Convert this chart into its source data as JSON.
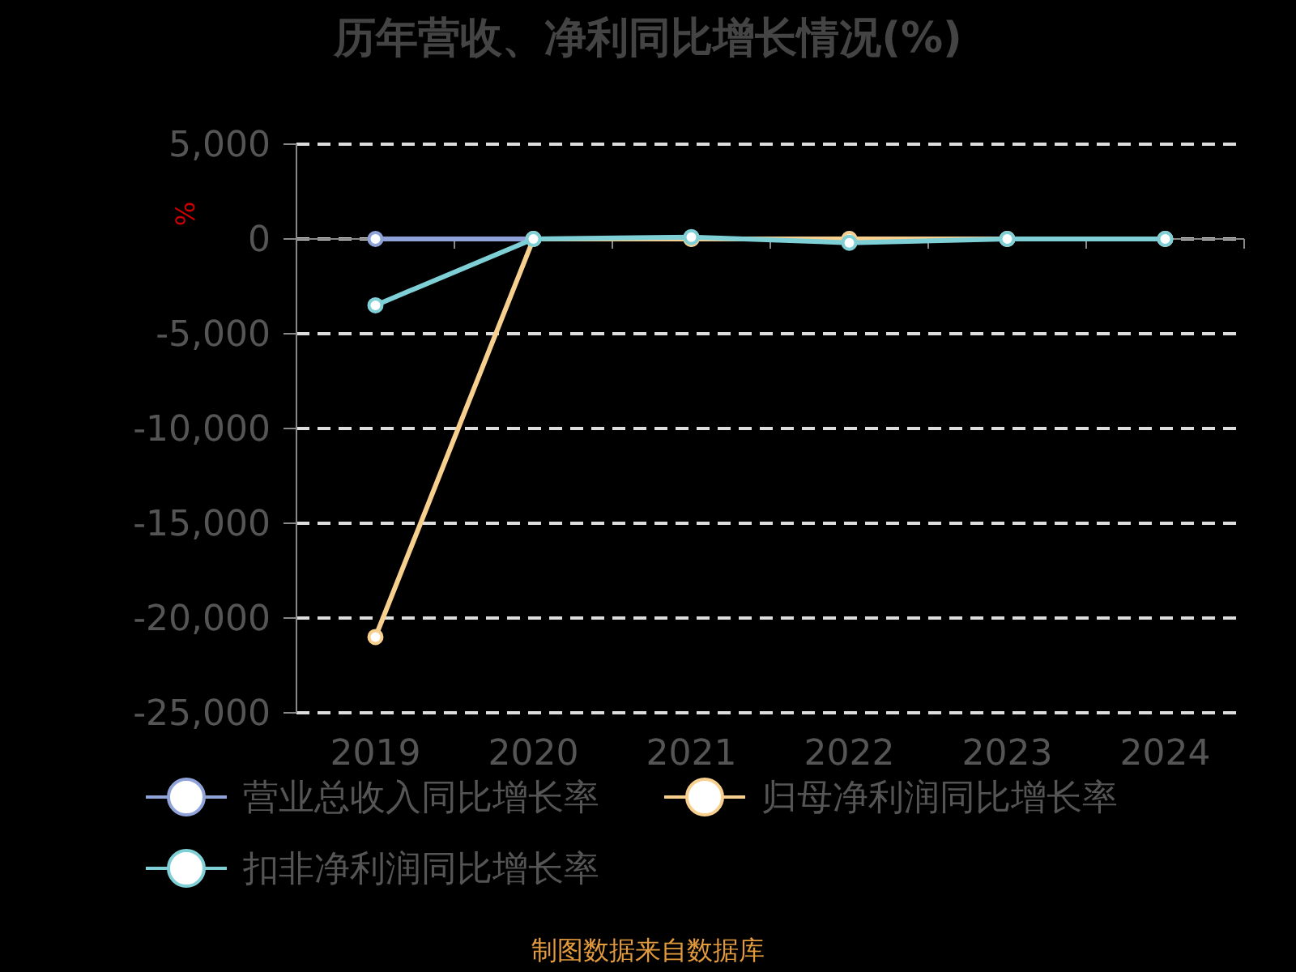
{
  "chart_data": {
    "type": "line",
    "title": "历年营收、净利同比增长情况(%)",
    "ylabel": "%",
    "categories": [
      "2019",
      "2020",
      "2021",
      "2022",
      "2023",
      "2024"
    ],
    "series": [
      {
        "name": "营业总收入同比增长率",
        "color": "#8fa3d9",
        "values": [
          0,
          0,
          0,
          0,
          0,
          0
        ]
      },
      {
        "name": "归母净利润同比增长率",
        "color": "#f7cf8e",
        "values": [
          -21000,
          0,
          0,
          0,
          0,
          0
        ]
      },
      {
        "name": "扣非净利润同比增长率",
        "color": "#7fd0d6",
        "values": [
          -3500,
          0,
          100,
          -200,
          0,
          0
        ]
      }
    ],
    "ylim": [
      -25000,
      5000
    ],
    "yticks": [
      {
        "value": 5000,
        "label": "5,000"
      },
      0,
      {
        "value": -5000,
        "label": "-5,000"
      },
      {
        "value": -10000,
        "label": "-10,000"
      },
      {
        "value": -15000,
        "label": "-15,000"
      },
      {
        "value": -20000,
        "label": "-20,000"
      },
      {
        "value": -25000,
        "label": "-25,000"
      }
    ],
    "grid": "y",
    "legend": "bottom",
    "marker": "circle",
    "line_style": "solid",
    "annotations": [
      "制图数据来自数据库"
    ]
  }
}
